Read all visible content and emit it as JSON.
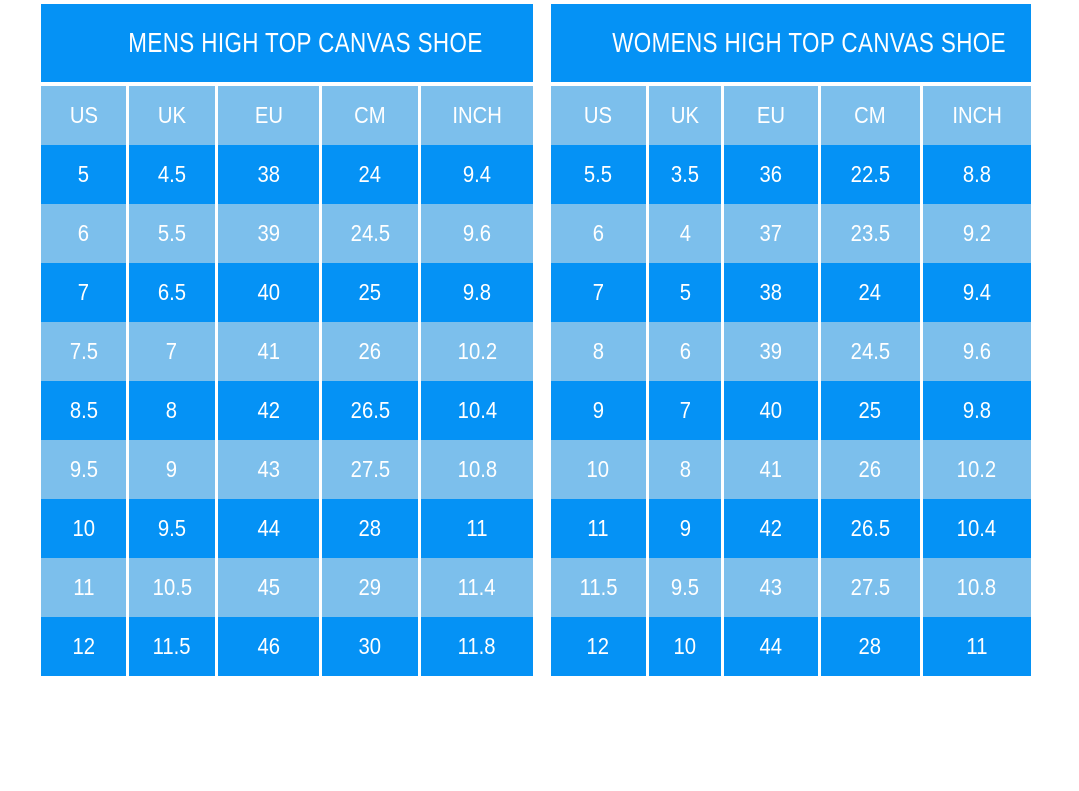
{
  "colors": {
    "row_bright_blue": "#0592f5",
    "row_light_blue": "#7cbfec",
    "text_white": "#ffffff",
    "page_background": "#ffffff"
  },
  "chart_data": [
    {
      "type": "table",
      "title": "MENS HIGH TOP CANVAS SHOE",
      "columns": [
        "US",
        "UK",
        "EU",
        "CM",
        "INCH"
      ],
      "rows": [
        [
          "5",
          "4.5",
          "38",
          "24",
          "9.4"
        ],
        [
          "6",
          "5.5",
          "39",
          "24.5",
          "9.6"
        ],
        [
          "7",
          "6.5",
          "40",
          "25",
          "9.8"
        ],
        [
          "7.5",
          "7",
          "41",
          "26",
          "10.2"
        ],
        [
          "8.5",
          "8",
          "42",
          "26.5",
          "10.4"
        ],
        [
          "9.5",
          "9",
          "43",
          "27.5",
          "10.8"
        ],
        [
          "10",
          "9.5",
          "44",
          "28",
          "11"
        ],
        [
          "11",
          "10.5",
          "45",
          "29",
          "11.4"
        ],
        [
          "12",
          "11.5",
          "46",
          "30",
          "11.8"
        ]
      ],
      "layout": {
        "first_row_color": "bright",
        "alternating": true,
        "legend": "none",
        "grid": "white vertical separators only"
      }
    },
    {
      "type": "table",
      "title": "WOMENS HIGH TOP CANVAS SHOE",
      "columns": [
        "US",
        "UK",
        "EU",
        "CM",
        "INCH"
      ],
      "rows": [
        [
          "5.5",
          "3.5",
          "36",
          "22.5",
          "8.8"
        ],
        [
          "6",
          "4",
          "37",
          "23.5",
          "9.2"
        ],
        [
          "7",
          "5",
          "38",
          "24",
          "9.4"
        ],
        [
          "8",
          "6",
          "39",
          "24.5",
          "9.6"
        ],
        [
          "9",
          "7",
          "40",
          "25",
          "9.8"
        ],
        [
          "10",
          "8",
          "41",
          "26",
          "10.2"
        ],
        [
          "11",
          "9",
          "42",
          "26.5",
          "10.4"
        ],
        [
          "11.5",
          "9.5",
          "43",
          "27.5",
          "10.8"
        ],
        [
          "12",
          "10",
          "44",
          "28",
          "11"
        ]
      ],
      "layout": {
        "first_row_color": "bright",
        "alternating": true,
        "legend": "none",
        "grid": "white vertical separators only"
      }
    }
  ]
}
